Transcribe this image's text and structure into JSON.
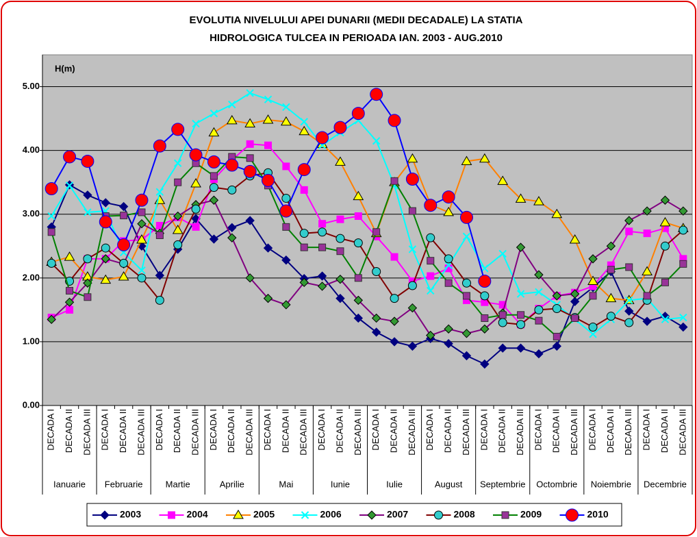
{
  "chart_data": {
    "type": "line",
    "title": [
      "EVOLUTIA NIVELULUI APEI DUNARII (MEDII DECADALE) LA STATIA",
      "HIDROLOGICA TULCEA IN PERIOADA IAN. 2003 - AUG.2010"
    ],
    "y_label": "H(m)",
    "categories": [
      "DECADA I",
      "DECADA II",
      "DECADA III",
      "DECADA I",
      "DECADA II",
      "DECADA III",
      "DECADA I",
      "DECADA II",
      "DECADA III",
      "DECADA I",
      "DECADA II",
      "DECADA III",
      "DECADA I",
      "DECADA II",
      "DECADA III",
      "DECADA I",
      "DECADA II",
      "DECADA III",
      "DECADA I",
      "DECADA II",
      "DECADA III",
      "DECADA I",
      "DECADA II",
      "DECADA III",
      "DECADA I",
      "DECADA II",
      "DECADA III",
      "DECADA I",
      "DECADA II",
      "DECADA III",
      "DECADA I",
      "DECADA II",
      "DECADA III",
      "DECADA I",
      "DECADA II",
      "DECADA III"
    ],
    "months": [
      "Ianuarie",
      "Februarie",
      "Martie",
      "Aprilie",
      "Mai",
      "Iunie",
      "Iulie",
      "August",
      "Septembrie",
      "Octombrie",
      "Noiembrie",
      "Decembrie"
    ],
    "ylim": [
      0,
      5.5
    ],
    "yticks": [
      {
        "value": 0,
        "label": "0.00"
      },
      {
        "value": 1,
        "label": "1.00"
      },
      {
        "value": 2,
        "label": "2.00"
      },
      {
        "value": 3,
        "label": "3.00"
      },
      {
        "value": 4,
        "label": "4.00"
      },
      {
        "value": 5,
        "label": "5.00"
      }
    ],
    "grid": true,
    "legend": "bottom",
    "series": [
      {
        "name": "2003",
        "color": "#000080",
        "marker": "diamond",
        "marker_color": "#000080",
        "values": [
          2.8,
          3.46,
          3.3,
          3.18,
          3.12,
          2.5,
          2.04,
          2.45,
          2.93,
          2.61,
          2.79,
          2.9,
          2.47,
          2.28,
          1.99,
          2.03,
          1.68,
          1.37,
          1.15,
          1.0,
          0.93,
          1.05,
          0.97,
          0.78,
          0.65,
          0.9,
          0.9,
          0.81,
          0.93,
          1.63,
          1.85,
          2.1,
          1.48,
          1.32,
          1.4,
          1.23
        ]
      },
      {
        "name": "2004",
        "color": "#ff00ff",
        "marker": "square",
        "marker_color": "#ff00ff",
        "values": [
          1.38,
          1.5,
          2.3,
          2.3,
          2.58,
          2.6,
          2.82,
          2.95,
          2.8,
          3.55,
          3.85,
          4.1,
          4.08,
          3.75,
          3.38,
          2.85,
          2.92,
          2.97,
          2.65,
          2.33,
          1.95,
          2.03,
          2.15,
          1.65,
          1.62,
          1.58,
          1.27,
          1.52,
          1.72,
          1.77,
          1.87,
          2.2,
          2.73,
          2.7,
          2.78,
          2.3
        ]
      },
      {
        "name": "2005",
        "color": "#ff8000",
        "marker": "triangle",
        "marker_color": "#ffff00",
        "values": [
          2.25,
          2.33,
          2.02,
          1.97,
          2.02,
          2.6,
          3.22,
          2.75,
          3.48,
          4.28,
          4.47,
          4.42,
          4.48,
          4.45,
          4.3,
          4.1,
          3.82,
          3.28,
          2.7,
          3.5,
          3.87,
          3.15,
          3.03,
          3.83,
          3.87,
          3.52,
          3.24,
          3.2,
          3.0,
          2.6,
          1.95,
          1.68,
          1.65,
          2.1,
          2.87,
          2.78
        ]
      },
      {
        "name": "2006",
        "color": "#00ffff",
        "marker": "x",
        "marker_color": "#00ffff",
        "values": [
          2.97,
          3.45,
          3.03,
          3.05,
          2.4,
          2.12,
          3.35,
          3.8,
          4.42,
          4.58,
          4.72,
          4.9,
          4.8,
          4.68,
          4.45,
          4.08,
          4.28,
          4.47,
          4.15,
          3.45,
          2.45,
          1.8,
          2.2,
          2.65,
          2.15,
          2.38,
          1.75,
          1.78,
          1.58,
          1.35,
          1.12,
          1.35,
          1.65,
          1.68,
          1.35,
          1.38
        ]
      },
      {
        "name": "2007",
        "color": "#800080",
        "marker": "diamond",
        "marker_color": "#339933",
        "values": [
          1.35,
          1.62,
          1.92,
          2.3,
          2.22,
          2.85,
          2.7,
          2.97,
          3.15,
          3.22,
          2.63,
          2.0,
          1.68,
          1.58,
          1.93,
          1.87,
          1.98,
          1.65,
          1.37,
          1.32,
          1.53,
          1.1,
          1.2,
          1.13,
          1.2,
          1.45,
          2.48,
          2.05,
          1.72,
          1.75,
          2.3,
          2.5,
          2.9,
          3.05,
          3.22,
          3.05
        ]
      },
      {
        "name": "2008",
        "color": "#800000",
        "marker": "circle",
        "marker_color": "#33cccc",
        "values": [
          2.23,
          1.95,
          2.3,
          2.47,
          2.23,
          2.0,
          1.65,
          2.52,
          3.08,
          3.42,
          3.38,
          3.6,
          3.65,
          3.25,
          2.7,
          2.72,
          2.62,
          2.55,
          2.1,
          1.68,
          1.88,
          2.63,
          2.3,
          1.92,
          1.72,
          1.3,
          1.27,
          1.5,
          1.52,
          1.38,
          1.23,
          1.4,
          1.3,
          1.65,
          2.5,
          2.75
        ]
      },
      {
        "name": "2009",
        "color": "#008000",
        "marker": "square",
        "marker_color": "#993399",
        "values": [
          2.72,
          1.8,
          1.7,
          2.97,
          2.98,
          3.03,
          2.67,
          3.5,
          3.8,
          3.6,
          3.9,
          3.88,
          3.45,
          2.8,
          2.48,
          2.48,
          2.42,
          2.0,
          2.72,
          3.52,
          3.05,
          2.27,
          1.92,
          1.72,
          1.37,
          1.42,
          1.42,
          1.33,
          1.08,
          1.37,
          1.72,
          2.13,
          2.17,
          1.72,
          1.93,
          2.22
        ]
      },
      {
        "name": "2010",
        "color": "#0000ff",
        "marker": "bigcircle",
        "marker_color": "#ff0000",
        "values": [
          3.4,
          3.9,
          3.83,
          2.88,
          2.52,
          3.22,
          4.07,
          4.33,
          3.93,
          3.82,
          3.77,
          3.67,
          3.53,
          3.05,
          3.7,
          4.2,
          4.36,
          4.58,
          4.88,
          4.47,
          3.55,
          3.14,
          3.27,
          2.95,
          1.95,
          null,
          null,
          null,
          null,
          null,
          null,
          null,
          null,
          null,
          null,
          null
        ]
      }
    ]
  }
}
